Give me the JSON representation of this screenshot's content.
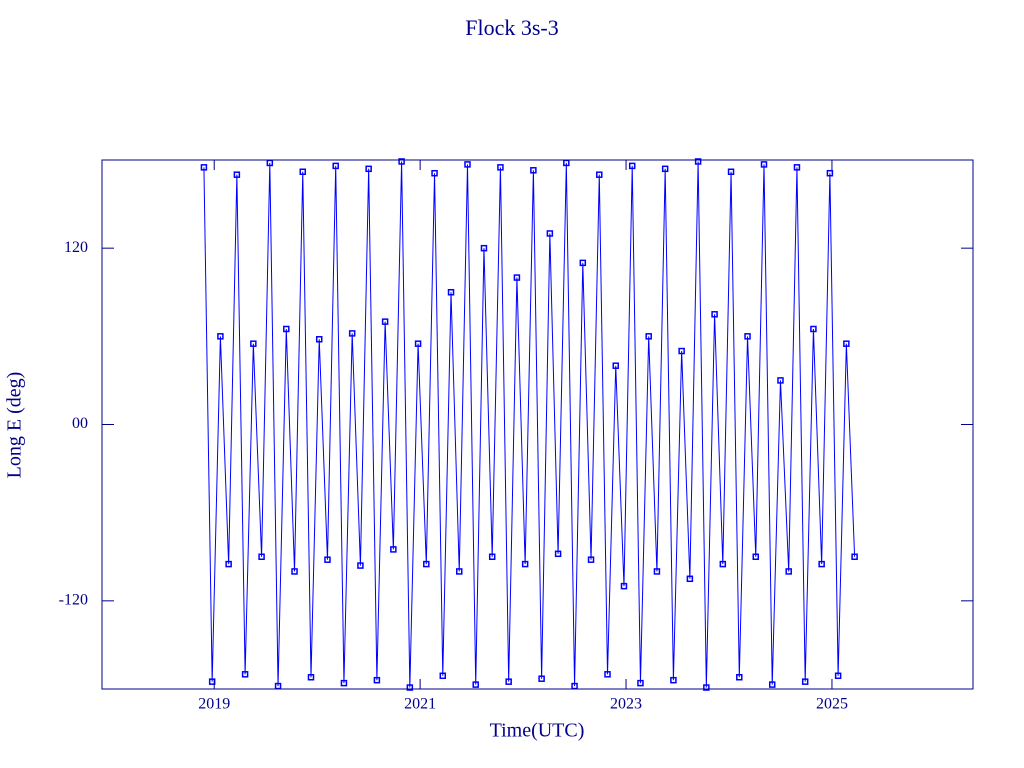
{
  "chart_data": {
    "type": "line",
    "title": "Flock 3s-3",
    "x_label": "Time(UTC)",
    "y_label": "Long E (deg)",
    "x": [
      2018.9,
      2018.98,
      2019.06,
      2019.14,
      2019.22,
      2019.3,
      2019.38,
      2019.46,
      2019.54,
      2019.62,
      2019.7,
      2019.78,
      2019.86,
      2019.94,
      2020.02,
      2020.1,
      2020.18,
      2020.26,
      2020.34,
      2020.42,
      2020.5,
      2020.58,
      2020.66,
      2020.74,
      2020.82,
      2020.9,
      2020.98,
      2021.06,
      2021.14,
      2021.22,
      2021.3,
      2021.38,
      2021.46,
      2021.54,
      2021.62,
      2021.7,
      2021.78,
      2021.86,
      2021.94,
      2022.02,
      2022.1,
      2022.18,
      2022.26,
      2022.34,
      2022.42,
      2022.5,
      2022.58,
      2022.66,
      2022.74,
      2022.82,
      2022.9,
      2022.98,
      2023.06,
      2023.14,
      2023.22,
      2023.3,
      2023.38,
      2023.46,
      2023.54,
      2023.62,
      2023.7,
      2023.78,
      2023.86,
      2023.94,
      2024.02,
      2024.1,
      2024.18,
      2024.26,
      2024.34,
      2024.42,
      2024.5,
      2024.58,
      2024.66,
      2024.74,
      2024.82,
      2024.9,
      2024.98,
      2025.06,
      2025.14,
      2025.22
    ],
    "series": [
      {
        "color": "#0000ff",
        "values": [
          175,
          -175,
          60,
          -95,
          170,
          -170,
          55,
          -90,
          178,
          -178,
          65,
          -100,
          172,
          -172,
          58,
          -92,
          176,
          -176,
          62,
          -96,
          174,
          -174,
          70,
          -85,
          179,
          -179,
          55,
          -95,
          171,
          -171,
          90,
          -100,
          177,
          -177,
          120,
          -90,
          175,
          -175,
          100,
          -95,
          173,
          -173,
          130,
          -88,
          178,
          -178,
          110,
          -92,
          170,
          -170,
          40,
          -110,
          176,
          -176,
          60,
          -100,
          174,
          -174,
          50,
          -105,
          179,
          -179,
          75,
          -95,
          172,
          -172,
          60,
          -90,
          177,
          -177,
          30,
          -100,
          175,
          -175,
          65,
          -95,
          171,
          -171,
          55,
          -90
        ]
      }
    ],
    "xlim": [
      2017.91,
      2026.37
    ],
    "xticks": [
      2019,
      2021,
      2023,
      2025
    ],
    "ylim": [
      -180,
      180
    ],
    "yticks": [
      -120,
      {
        "value": 0,
        "label": "00"
      },
      120
    ],
    "axis_color": "#00008b"
  }
}
